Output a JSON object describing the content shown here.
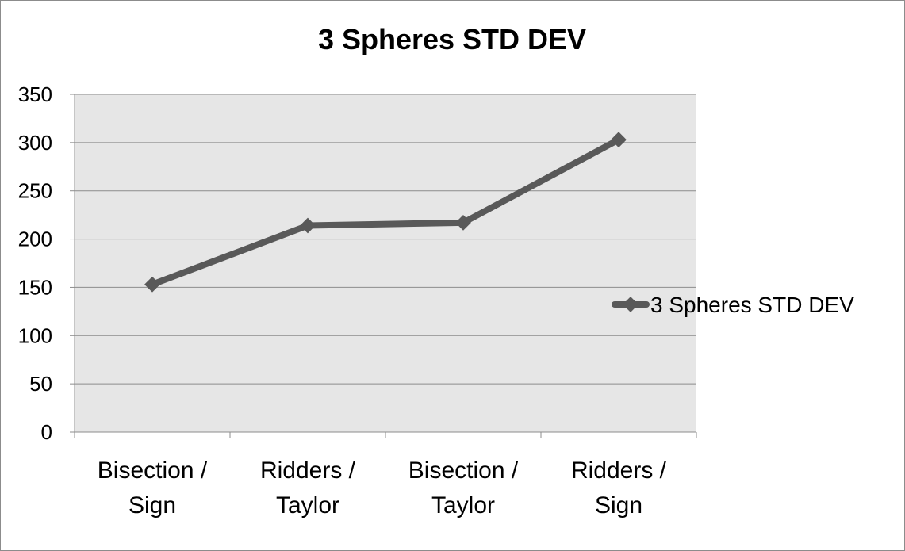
{
  "chart_data": {
    "type": "line",
    "title": "3 Spheres STD DEV",
    "xlabel": "",
    "ylabel": "",
    "categories": [
      [
        "Bisection /",
        "Sign"
      ],
      [
        "Ridders /",
        "Taylor"
      ],
      [
        "Bisection /",
        "Taylor"
      ],
      [
        "Ridders /",
        "Sign"
      ]
    ],
    "series": [
      {
        "name": "3 Spheres STD DEV",
        "values": [
          153,
          214,
          217,
          303
        ]
      }
    ],
    "ylim": [
      0,
      350
    ],
    "yticks": [
      0,
      50,
      100,
      150,
      200,
      250,
      300,
      350
    ],
    "grid": true,
    "legend": "right",
    "colors": {
      "series": "#595959",
      "plot_bg": "#e6e6e6",
      "grid": "#8c8c8c"
    }
  }
}
